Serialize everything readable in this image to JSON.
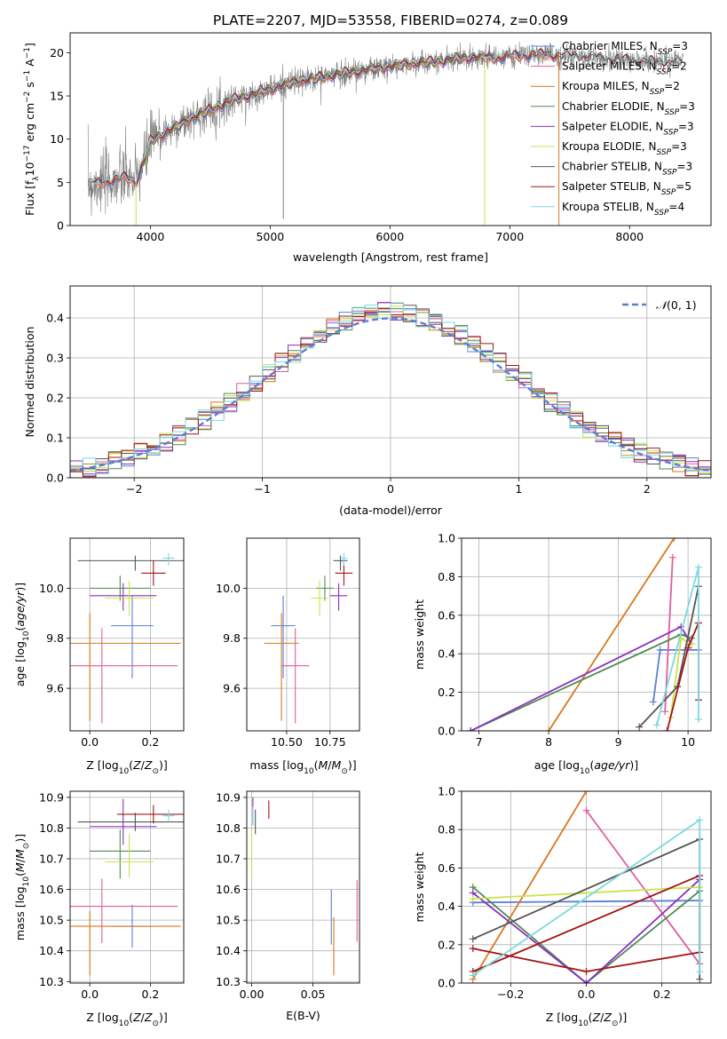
{
  "figure": {
    "title": "PLATE=2207, MJD=53558, FIBERID=0274, z=0.089"
  },
  "colors": {
    "chabrier_miles": "#5b7fd6",
    "salpeter_miles": "#e15d9e",
    "kroupa_miles": "#d9771f",
    "chabrier_elodie": "#4f8a52",
    "salpeter_elodie": "#8c2fbf",
    "kroupa_elodie": "#cbe24a",
    "chabrier_stelib": "#555555",
    "salpeter_stelib": "#a31515",
    "kroupa_stelib": "#7ad9e0",
    "spectrum_data": "#808080",
    "grid": "#b0b0b0"
  },
  "chart_data": [
    {
      "id": "spectrum",
      "type": "line",
      "title": "PLATE=2207, MJD=53558, FIBERID=0274, z=0.089",
      "xlabel": "wavelength [Angstrom, rest frame]",
      "ylabel": "Flux [fλ10⁻¹⁷ erg cm⁻² s⁻¹ A⁻¹]",
      "xlim": [
        3330,
        8680
      ],
      "ylim": [
        0,
        22.3
      ],
      "xticks": [
        4000,
        5000,
        6000,
        7000,
        8000
      ],
      "yticks": [
        0,
        5,
        10,
        15,
        20
      ],
      "grid": false,
      "legend_position": "top-right",
      "continuum": {
        "x": [
          3480,
          3600,
          3700,
          3800,
          3880,
          3920,
          3960,
          4000,
          4100,
          4200,
          4300,
          4400,
          4500,
          4700,
          4860,
          5000,
          5200,
          5400,
          5600,
          5800,
          6000,
          6200,
          6400,
          6560,
          6700,
          6900,
          7100,
          7300,
          7500,
          7700,
          7900,
          8100,
          8300,
          8450
        ],
        "y": [
          4.7,
          5.0,
          5.2,
          5.6,
          5.1,
          6.5,
          7.8,
          9.8,
          10.6,
          11.3,
          12.1,
          12.8,
          13.4,
          14.6,
          15.2,
          15.8,
          16.6,
          17.1,
          17.6,
          18.0,
          18.4,
          18.8,
          19.0,
          19.3,
          19.5,
          19.4,
          19.7,
          19.8,
          19.6,
          19.4,
          19.2,
          19.0,
          18.9,
          18.9
        ]
      },
      "series": [
        {
          "name": "Chabrier MILES, N_SSP=3",
          "color": "#5b7fd6",
          "x_range": [
            3540,
            7410
          ]
        },
        {
          "name": "Salpeter MILES, N_SSP=2",
          "color": "#e15d9e",
          "x_range": [
            3540,
            7410
          ]
        },
        {
          "name": "Kroupa MILES, N_SSP=2",
          "color": "#d9771f",
          "x_range": [
            3540,
            7410
          ]
        },
        {
          "name": "Chabrier ELODIE, N_SSP=3",
          "color": "#4f8a52",
          "x_range": [
            3900,
            6800
          ]
        },
        {
          "name": "Salpeter ELODIE, N_SSP=3",
          "color": "#8c2fbf",
          "x_range": [
            3900,
            6800
          ]
        },
        {
          "name": "Kroupa ELODIE, N_SSP=3",
          "color": "#cbe24a",
          "x_range": [
            3900,
            6800
          ]
        },
        {
          "name": "Chabrier STELIB, N_SSP=3",
          "color": "#555555",
          "x_range": [
            3480,
            8440
          ]
        },
        {
          "name": "Salpeter STELIB, N_SSP=5",
          "color": "#a31515",
          "x_range": [
            3480,
            8440
          ]
        },
        {
          "name": "Kroupa STELIB, N_SSP=4",
          "color": "#7ad9e0",
          "x_range": [
            3480,
            8440
          ]
        }
      ],
      "spikes": [
        {
          "x": 5110,
          "y_low": 0.8,
          "color": "#808080"
        },
        {
          "x": 6790,
          "y_low": 0.0,
          "color": "#cbe24a"
        },
        {
          "x": 7410,
          "y_low": 0.0,
          "color": "#d9771f"
        },
        {
          "x": 3880,
          "y_low": 0.0,
          "color": "#cbe24a"
        }
      ]
    },
    {
      "id": "residuals",
      "type": "line",
      "xlabel": "(data-model)/error",
      "ylabel": "Normed distribution",
      "xlim": [
        -2.5,
        2.5
      ],
      "ylim": [
        0,
        0.48
      ],
      "xticks": [
        -2,
        -1,
        0,
        1,
        2
      ],
      "yticks": [
        0.0,
        0.1,
        0.2,
        0.3,
        0.4
      ],
      "grid": true,
      "legend_position": "top-right",
      "legend": [
        {
          "name": "𝒩(0, 1)",
          "color": "#5b7fd6",
          "style": "dashed"
        }
      ],
      "gaussian": {
        "mean": 0,
        "sigma": 1
      }
    },
    {
      "id": "age_vs_Z",
      "type": "scatter",
      "xlabel": "Z [log₁₀(Z/Z⊙)]",
      "ylabel": "age  [log₁₀(age/yr)]",
      "xlim": [
        -0.065,
        0.31
      ],
      "ylim": [
        9.43,
        10.2
      ],
      "xticks": [
        0.0,
        0.2
      ],
      "yticks": [
        9.6,
        9.8,
        10.0
      ],
      "grid": true,
      "points": [
        {
          "x": 0.14,
          "y": 9.85,
          "xerr": 0.07,
          "yerr_lo": 0.21,
          "yerr_hi": 0.12,
          "color": "#5b7fd6"
        },
        {
          "x": 0.04,
          "y": 9.69,
          "xerr": 0.25,
          "yerr_lo": 0.23,
          "yerr_hi": 0.15,
          "color": "#e15d9e"
        },
        {
          "x": 0.0,
          "y": 9.78,
          "xerr": 0.3,
          "yerr_lo": 0.31,
          "yerr_hi": 0.12,
          "color": "#d9771f"
        },
        {
          "x": 0.1,
          "y": 10.0,
          "xerr": 0.1,
          "yerr_lo": 0.05,
          "yerr_hi": 0.05,
          "color": "#4f8a52"
        },
        {
          "x": 0.11,
          "y": 9.97,
          "xerr": 0.11,
          "yerr_lo": 0.06,
          "yerr_hi": 0.05,
          "color": "#8c2fbf"
        },
        {
          "x": 0.13,
          "y": 9.96,
          "xerr": 0.08,
          "yerr_lo": 0.07,
          "yerr_hi": 0.07,
          "color": "#cbe24a"
        },
        {
          "x": 0.15,
          "y": 10.11,
          "xerr": 0.19,
          "yerr_lo": 0.04,
          "yerr_hi": 0.02,
          "color": "#555555"
        },
        {
          "x": 0.21,
          "y": 10.06,
          "xerr": 0.04,
          "yerr_lo": 0.05,
          "yerr_hi": 0.05,
          "color": "#a31515"
        },
        {
          "x": 0.26,
          "y": 10.12,
          "xerr": 0.02,
          "yerr_lo": 0.03,
          "yerr_hi": 0.02,
          "color": "#7ad9e0"
        }
      ]
    },
    {
      "id": "age_vs_mass",
      "type": "scatter",
      "xlabel": "mass [log₁₀(M/M⊙)]",
      "ylabel": "",
      "xlim": [
        10.27,
        10.92
      ],
      "ylim": [
        9.43,
        10.2
      ],
      "xticks": [
        10.5,
        10.75
      ],
      "yticks": [
        9.6,
        9.8,
        10.0
      ],
      "grid": true,
      "points": [
        {
          "x": 10.48,
          "y": 9.85,
          "xerr": 0.07,
          "yerr_lo": 0.21,
          "yerr_hi": 0.12,
          "color": "#5b7fd6"
        },
        {
          "x": 10.55,
          "y": 9.69,
          "xerr": 0.08,
          "yerr_lo": 0.23,
          "yerr_hi": 0.15,
          "color": "#e15d9e"
        },
        {
          "x": 10.47,
          "y": 9.78,
          "xerr": 0.1,
          "yerr_lo": 0.31,
          "yerr_hi": 0.12,
          "color": "#d9771f"
        },
        {
          "x": 10.72,
          "y": 10.0,
          "xerr": 0.05,
          "yerr_lo": 0.05,
          "yerr_hi": 0.05,
          "color": "#4f8a52"
        },
        {
          "x": 10.8,
          "y": 9.97,
          "xerr": 0.05,
          "yerr_lo": 0.06,
          "yerr_hi": 0.05,
          "color": "#8c2fbf"
        },
        {
          "x": 10.69,
          "y": 9.96,
          "xerr": 0.05,
          "yerr_lo": 0.07,
          "yerr_hi": 0.07,
          "color": "#cbe24a"
        },
        {
          "x": 10.81,
          "y": 10.11,
          "xerr": 0.04,
          "yerr_lo": 0.04,
          "yerr_hi": 0.02,
          "color": "#555555"
        },
        {
          "x": 10.83,
          "y": 10.06,
          "xerr": 0.05,
          "yerr_lo": 0.05,
          "yerr_hi": 0.05,
          "color": "#a31515"
        },
        {
          "x": 10.83,
          "y": 10.12,
          "xerr": 0.02,
          "yerr_lo": 0.03,
          "yerr_hi": 0.02,
          "color": "#7ad9e0"
        }
      ]
    },
    {
      "id": "mass_weight_vs_age",
      "type": "line",
      "xlabel": "age  [log₁₀(age/yr)]",
      "ylabel": "mass weight",
      "xlim": [
        6.75,
        10.33
      ],
      "ylim": [
        0,
        1.0
      ],
      "xticks": [
        7,
        8,
        9,
        10
      ],
      "yticks": [
        0.0,
        0.2,
        0.4,
        0.6,
        0.8,
        1.0
      ],
      "grid": true,
      "series": [
        {
          "color": "#5b7fd6",
          "x": [
            9.5,
            9.6,
            10.15
          ],
          "y": [
            0.15,
            0.42,
            0.42
          ]
        },
        {
          "color": "#e15d9e",
          "x": [
            9.67,
            9.78
          ],
          "y": [
            0.1,
            0.9
          ]
        },
        {
          "color": "#d9771f",
          "x": [
            8.0,
            9.8
          ],
          "y": [
            0.0,
            1.0
          ]
        },
        {
          "color": "#4f8a52",
          "x": [
            6.88,
            9.9,
            10.05
          ],
          "y": [
            0.0,
            0.5,
            0.48
          ]
        },
        {
          "color": "#8c2fbf",
          "x": [
            6.88,
            9.9,
            10.05
          ],
          "y": [
            0.0,
            0.54,
            0.45
          ]
        },
        {
          "color": "#cbe24a",
          "x": [
            9.75,
            9.9,
            10.05
          ],
          "y": [
            0.07,
            0.48,
            0.45
          ]
        },
        {
          "color": "#555555",
          "x": [
            9.3,
            9.85,
            10.15
          ],
          "y": [
            0.02,
            0.23,
            0.75
          ]
        },
        {
          "color": "#a31515",
          "x": [
            9.7,
            10.0,
            10.15,
            10.15
          ],
          "y": [
            0.0,
            0.43,
            0.56,
            0.16
          ]
        },
        {
          "color": "#7ad9e0",
          "x": [
            9.55,
            10.15,
            10.15
          ],
          "y": [
            0.03,
            0.85,
            0.06
          ]
        }
      ]
    },
    {
      "id": "mass_vs_Z",
      "type": "scatter",
      "xlabel": "Z [log₁₀(Z/Z⊙)]",
      "ylabel": "mass [log₁₀(M/M⊙)]",
      "xlim": [
        -0.065,
        0.31
      ],
      "ylim": [
        10.295,
        10.92
      ],
      "xticks": [
        0.0,
        0.2
      ],
      "yticks": [
        10.3,
        10.4,
        10.5,
        10.6,
        10.7,
        10.8,
        10.9
      ],
      "grid": true,
      "points": [
        {
          "x": 0.14,
          "y": 10.48,
          "xerr": 0.07,
          "yerr_lo": 0.07,
          "yerr_hi": 0.07,
          "color": "#5b7fd6"
        },
        {
          "x": 0.04,
          "y": 10.545,
          "xerr": 0.25,
          "yerr_lo": 0.12,
          "yerr_hi": 0.09,
          "color": "#e15d9e"
        },
        {
          "x": 0.0,
          "y": 10.48,
          "xerr": 0.3,
          "yerr_lo": 0.16,
          "yerr_hi": 0.05,
          "color": "#d9771f"
        },
        {
          "x": 0.1,
          "y": 10.725,
          "xerr": 0.1,
          "yerr_lo": 0.09,
          "yerr_hi": 0.07,
          "color": "#4f8a52"
        },
        {
          "x": 0.11,
          "y": 10.805,
          "xerr": 0.11,
          "yerr_lo": 0.06,
          "yerr_hi": 0.09,
          "color": "#8c2fbf"
        },
        {
          "x": 0.13,
          "y": 10.69,
          "xerr": 0.08,
          "yerr_lo": 0.05,
          "yerr_hi": 0.09,
          "color": "#cbe24a"
        },
        {
          "x": 0.15,
          "y": 10.82,
          "xerr": 0.19,
          "yerr_lo": 0.03,
          "yerr_hi": 0.03,
          "color": "#555555"
        },
        {
          "x": 0.21,
          "y": 10.845,
          "xerr": 0.12,
          "yerr_lo": 0.03,
          "yerr_hi": 0.03,
          "color": "#a31515"
        },
        {
          "x": 0.26,
          "y": 10.84,
          "xerr": 0.02,
          "yerr_lo": 0.02,
          "yerr_hi": 0.02,
          "color": "#7ad9e0"
        }
      ]
    },
    {
      "id": "mass_vs_ebv",
      "type": "scatter",
      "xlabel": "E(B-V)",
      "ylabel": "",
      "xlim": [
        -0.004,
        0.088
      ],
      "ylim": [
        10.295,
        10.92
      ],
      "xticks": [
        0.0,
        0.05
      ],
      "yticks": [
        10.3,
        10.4,
        10.5,
        10.6,
        10.7,
        10.8,
        10.9
      ],
      "grid": true,
      "points": [
        {
          "x": 0.065,
          "y": 10.51,
          "yerr_lo": 0.09,
          "yerr_hi": 0.09,
          "color": "#5b7fd6"
        },
        {
          "x": 0.086,
          "y": 10.53,
          "yerr_lo": 0.1,
          "yerr_hi": 0.1,
          "color": "#e15d9e"
        },
        {
          "x": 0.067,
          "y": 10.42,
          "yerr_lo": 0.1,
          "yerr_hi": 0.09,
          "color": "#d9771f"
        },
        {
          "x": 0.001,
          "y": 10.86,
          "yerr_lo": 0.05,
          "yerr_hi": 0.04,
          "color": "#8c2fbf"
        },
        {
          "x": 0.0,
          "y": 10.72,
          "yerr_lo": 0.08,
          "yerr_hi": 0.08,
          "color": "#cbe24a"
        },
        {
          "x": 0.003,
          "y": 10.82,
          "yerr_lo": 0.04,
          "yerr_hi": 0.04,
          "color": "#555555"
        },
        {
          "x": 0.014,
          "y": 10.86,
          "yerr_lo": 0.03,
          "yerr_hi": 0.03,
          "color": "#a31515"
        },
        {
          "x": 0.001,
          "y": 10.84,
          "yerr_lo": 0.03,
          "yerr_hi": 0.03,
          "color": "#7ad9e0"
        }
      ]
    },
    {
      "id": "mass_weight_vs_Z",
      "type": "line",
      "xlabel": "Z [log₁₀(Z/Z⊙)]",
      "ylabel": "mass weight",
      "xlim": [
        -0.33,
        0.33
      ],
      "ylim": [
        0,
        1.0
      ],
      "xticks": [
        -0.2,
        0.0,
        0.2
      ],
      "yticks": [
        0.0,
        0.2,
        0.4,
        0.6,
        0.8,
        1.0
      ],
      "grid": true,
      "series": [
        {
          "color": "#5b7fd6",
          "x": [
            -0.3,
            0.3
          ],
          "y": [
            0.42,
            0.43
          ]
        },
        {
          "color": "#e15d9e",
          "x": [
            0.0,
            0.3
          ],
          "y": [
            0.9,
            0.1
          ]
        },
        {
          "color": "#d9771f",
          "x": [
            -0.3,
            0.0
          ],
          "y": [
            0.02,
            1.0
          ]
        },
        {
          "color": "#4f8a52",
          "x": [
            -0.3,
            0.0,
            0.3
          ],
          "y": [
            0.5,
            0.0,
            0.48
          ]
        },
        {
          "color": "#8c2fbf",
          "x": [
            -0.3,
            0.0,
            0.3
          ],
          "y": [
            0.47,
            0.0,
            0.54
          ]
        },
        {
          "color": "#cbe24a",
          "x": [
            -0.3,
            0.3
          ],
          "y": [
            0.44,
            0.5
          ]
        },
        {
          "color": "#555555",
          "x": [
            -0.3,
            0.3,
            0.3
          ],
          "y": [
            0.23,
            0.75,
            0.02
          ]
        },
        {
          "color": "#a31515",
          "x": [
            -0.3,
            0.0,
            0.3,
            0.3,
            -0.3
          ],
          "y": [
            0.18,
            0.06,
            0.16,
            0.56,
            0.06
          ]
        },
        {
          "color": "#7ad9e0",
          "x": [
            -0.3,
            0.3,
            0.3
          ],
          "y": [
            0.04,
            0.85,
            0.06
          ]
        }
      ]
    }
  ]
}
